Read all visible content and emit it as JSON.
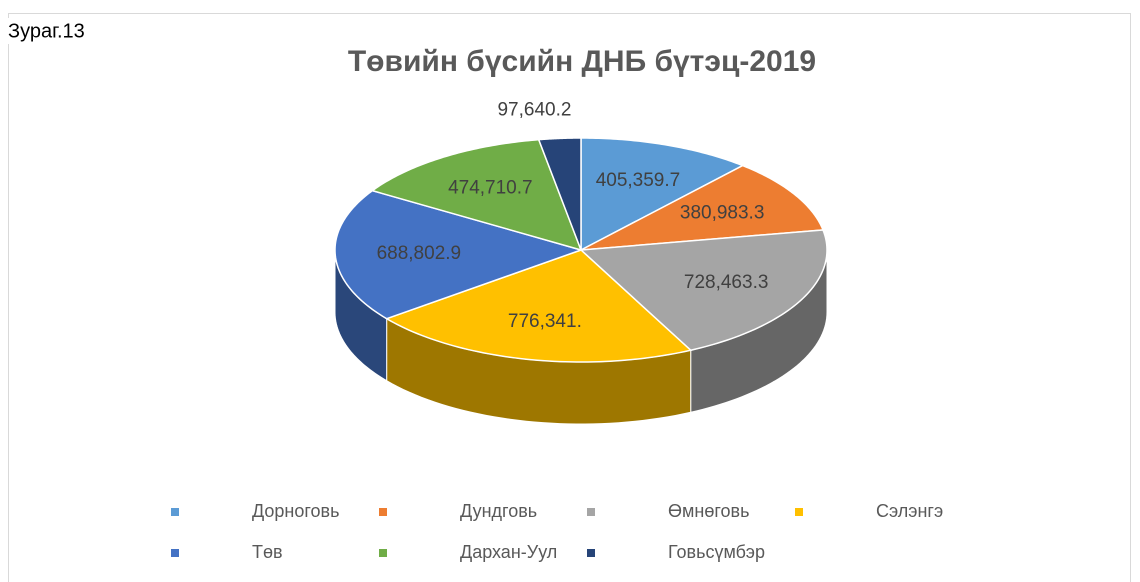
{
  "figure_label": "Зураг.13",
  "chart_data": {
    "type": "pie3d",
    "title": "Төвийн бүсийн ДНБ бүтэц-2019",
    "categories": [
      "Дорноговь",
      "Дундговь",
      "Өмнөговь",
      "Сэлэнгэ",
      "Төв",
      "Дархан-Уул",
      "Говьсүмбэр"
    ],
    "values": [
      405359.7,
      380983.3,
      728463.3,
      776341,
      688802.9,
      474710.7,
      97640.2
    ],
    "value_labels": [
      "405,359.7",
      "380,983.3",
      "728,463.3",
      "776,341.",
      "688,802.9",
      "474,710.7",
      "97,640.2"
    ],
    "colors": [
      "#5b9bd5",
      "#ed7d31",
      "#a5a5a5",
      "#ffc000",
      "#4472c4",
      "#70ad47",
      "#264478"
    ],
    "legend": "bottom"
  }
}
